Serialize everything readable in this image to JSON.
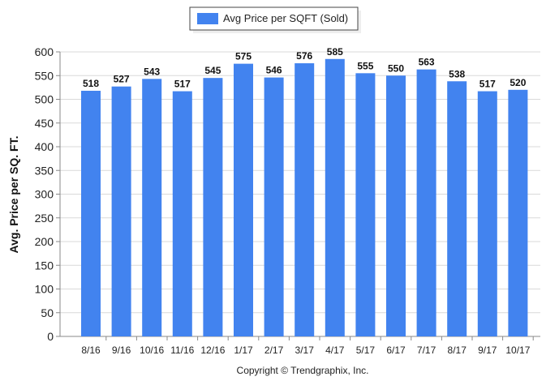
{
  "chart_data": {
    "type": "bar",
    "categories": [
      "8/16",
      "9/16",
      "10/16",
      "11/16",
      "12/16",
      "1/17",
      "2/17",
      "3/17",
      "4/17",
      "5/17",
      "6/17",
      "7/17",
      "8/17",
      "9/17",
      "10/17"
    ],
    "series": [
      {
        "name": "Avg Price per SQFT (Sold)",
        "values": [
          518,
          527,
          543,
          517,
          545,
          575,
          546,
          576,
          585,
          555,
          550,
          563,
          538,
          517,
          520
        ],
        "color": "#4283ef"
      }
    ],
    "ylabel": "Avg. Price per SQ. FT.",
    "xlabel": "",
    "ylim": [
      0,
      600
    ],
    "yticks": [
      0,
      50,
      100,
      150,
      200,
      250,
      300,
      350,
      400,
      450,
      500,
      550,
      600
    ],
    "grid": true,
    "legend_position": "top-center",
    "show_data_labels": true
  },
  "footer": {
    "copyright": "Copyright © Trendgraphix, Inc."
  },
  "colors": {
    "bar": "#4283ef",
    "grid": "#d9d9d9",
    "axis": "#888888"
  }
}
